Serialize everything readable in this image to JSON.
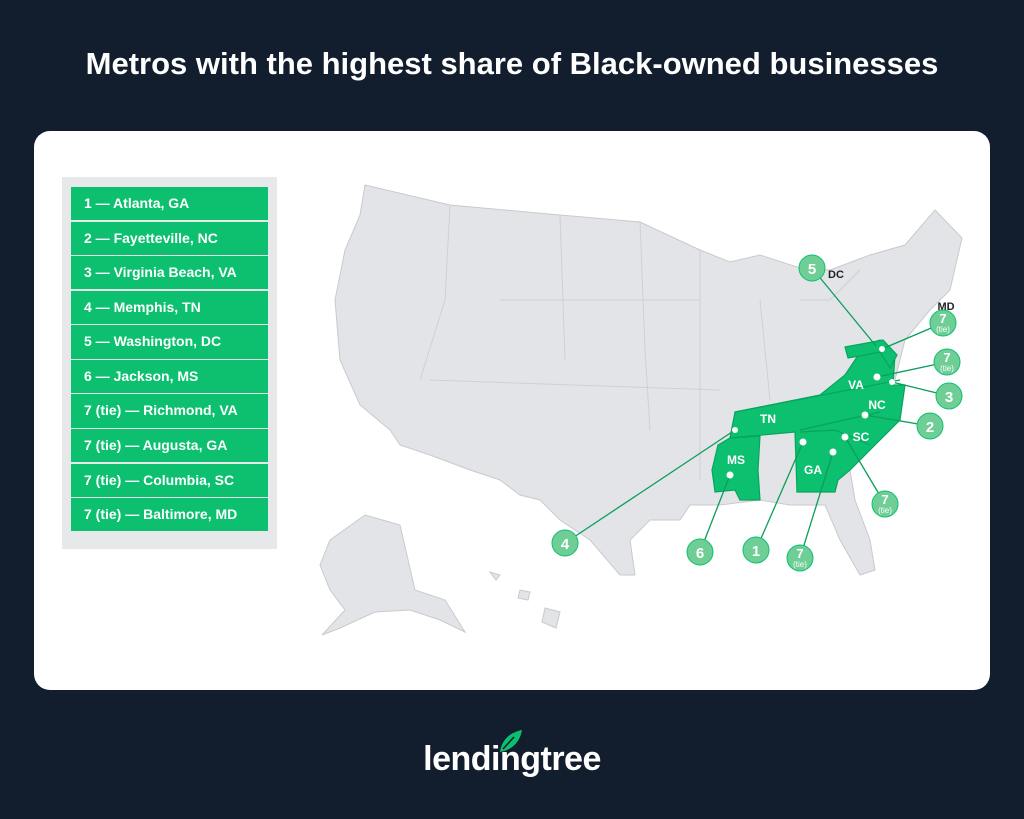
{
  "title": "Metros with the highest share of Black-owned businesses",
  "legend": [
    "1 — Atlanta, GA",
    "2 — Fayetteville, NC",
    "3 — Virginia Beach, VA",
    "4 — Memphis, TN",
    "5 — Washington, DC",
    "6 — Jackson, MS",
    "7 (tie) — Richmond, VA",
    "7 (tie) — Augusta, GA",
    "7 (tie) — Columbia, SC",
    "7 (tie) — Baltimore, MD"
  ],
  "state_labels": {
    "va": "VA",
    "nc": "NC",
    "sc": "SC",
    "ga": "GA",
    "tn": "TN",
    "ms": "MS",
    "dc": "DC",
    "md": "MD"
  },
  "badges": {
    "r1": "1",
    "r2": "2",
    "r3": "3",
    "r4": "4",
    "r5": "5",
    "r6": "6",
    "r7": "7",
    "tie": "(tie)"
  },
  "brand": "lendingtree",
  "colors": {
    "background": "#121d2e",
    "highlight": "#0cc06f",
    "badge": "#6fce96",
    "map_gray": "#e3e4e7"
  }
}
